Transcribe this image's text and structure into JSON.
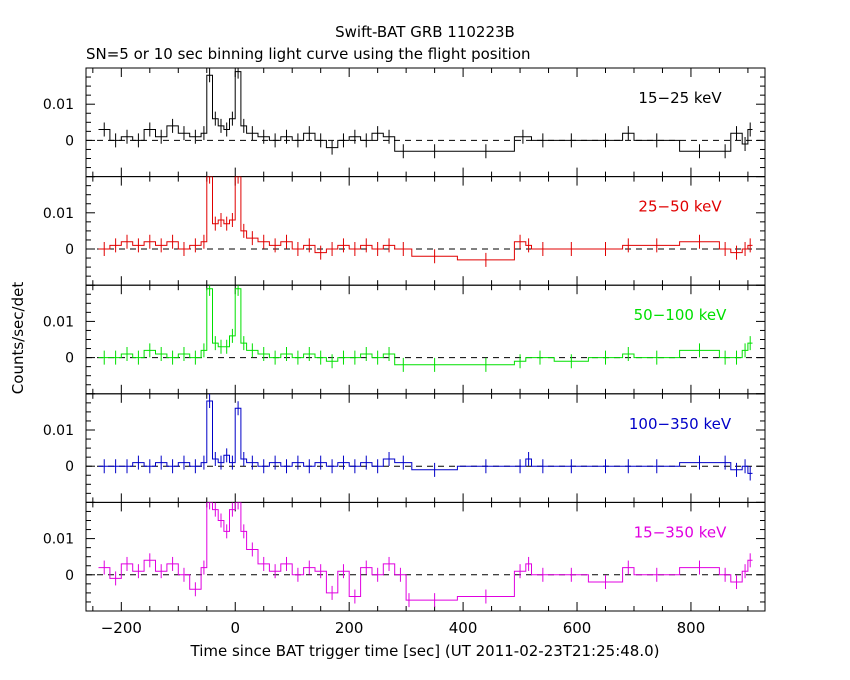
{
  "title": "Swift-BAT GRB 110223B",
  "subtitle": "SN=5 or 10 sec binning light curve using the flight position",
  "ylabel": "Counts/sec/det",
  "xlabel": "Time since BAT trigger time [sec] (UT 2011-02-23T21:25:48.0)",
  "chart_data": {
    "type": "line",
    "x_range": [
      -262,
      930
    ],
    "x_ticks": [
      -200,
      0,
      200,
      400,
      600,
      800
    ],
    "x_tick_labels": [
      "−200",
      "0",
      "200",
      "400",
      "600",
      "800"
    ],
    "y_range": [
      -0.01,
      0.02
    ],
    "y_tick_labels": [
      "0",
      "0.01"
    ],
    "grid": false,
    "panels": [
      {
        "label": "15−25 keV",
        "color": "#000000",
        "points": [
          [
            -240,
            0.003
          ],
          [
            -220,
            0.0
          ],
          [
            -200,
            0.001
          ],
          [
            -180,
            0.0
          ],
          [
            -160,
            0.003
          ],
          [
            -140,
            0.001
          ],
          [
            -120,
            0.004
          ],
          [
            -100,
            0.002
          ],
          [
            -80,
            0.001
          ],
          [
            -60,
            0.002
          ],
          [
            -50,
            0.018
          ],
          [
            -40,
            0.006
          ],
          [
            -30,
            0.004
          ],
          [
            -20,
            0.003
          ],
          [
            -10,
            0.006
          ],
          [
            0,
            0.019
          ],
          [
            10,
            0.004
          ],
          [
            20,
            0.002
          ],
          [
            40,
            0.001
          ],
          [
            60,
            0.0
          ],
          [
            80,
            0.001
          ],
          [
            100,
            0.0
          ],
          [
            120,
            0.002
          ],
          [
            140,
            0.0
          ],
          [
            160,
            -0.002
          ],
          [
            180,
            0.0
          ],
          [
            200,
            0.001
          ],
          [
            220,
            0.0
          ],
          [
            240,
            0.002
          ],
          [
            260,
            0.001
          ],
          [
            280,
            -0.003
          ],
          [
            310,
            -0.003
          ],
          [
            390,
            -0.003
          ],
          [
            490,
            0.001
          ],
          [
            520,
            0.0
          ],
          [
            560,
            0.0
          ],
          [
            620,
            0.0
          ],
          [
            680,
            0.002
          ],
          [
            700,
            0.0
          ],
          [
            780,
            -0.003
          ],
          [
            850,
            -0.003
          ],
          [
            870,
            0.002
          ],
          [
            890,
            -0.001
          ],
          [
            900,
            0.003
          ]
        ]
      },
      {
        "label": "25−50 keV",
        "color": "#e00000",
        "points": [
          [
            -240,
            0.0
          ],
          [
            -220,
            0.001
          ],
          [
            -200,
            0.002
          ],
          [
            -180,
            0.001
          ],
          [
            -160,
            0.002
          ],
          [
            -140,
            0.001
          ],
          [
            -120,
            0.002
          ],
          [
            -100,
            0.0
          ],
          [
            -80,
            0.001
          ],
          [
            -60,
            0.002
          ],
          [
            -50,
            0.02
          ],
          [
            -40,
            0.007
          ],
          [
            -30,
            0.008
          ],
          [
            -20,
            0.007
          ],
          [
            -10,
            0.008
          ],
          [
            0,
            0.02
          ],
          [
            10,
            0.005
          ],
          [
            20,
            0.003
          ],
          [
            40,
            0.002
          ],
          [
            60,
            0.001
          ],
          [
            80,
            0.002
          ],
          [
            100,
            0.0
          ],
          [
            120,
            0.001
          ],
          [
            140,
            -0.001
          ],
          [
            160,
            0.0
          ],
          [
            180,
            0.001
          ],
          [
            200,
            0.0
          ],
          [
            220,
            0.001
          ],
          [
            240,
            0.0
          ],
          [
            260,
            0.001
          ],
          [
            280,
            0.0
          ],
          [
            310,
            -0.002
          ],
          [
            390,
            -0.003
          ],
          [
            490,
            0.002
          ],
          [
            510,
            0.001
          ],
          [
            520,
            0.0
          ],
          [
            560,
            0.0
          ],
          [
            620,
            0.0
          ],
          [
            680,
            0.001
          ],
          [
            700,
            0.001
          ],
          [
            780,
            0.002
          ],
          [
            850,
            0.0
          ],
          [
            870,
            -0.001
          ],
          [
            890,
            0.0
          ],
          [
            900,
            0.001
          ]
        ]
      },
      {
        "label": "50−100 keV",
        "color": "#00e000",
        "points": [
          [
            -240,
            0.0
          ],
          [
            -220,
            0.0
          ],
          [
            -200,
            0.001
          ],
          [
            -180,
            0.0
          ],
          [
            -160,
            0.002
          ],
          [
            -140,
            0.001
          ],
          [
            -120,
            0.0
          ],
          [
            -100,
            0.001
          ],
          [
            -80,
            0.0
          ],
          [
            -60,
            0.002
          ],
          [
            -50,
            0.019
          ],
          [
            -40,
            0.004
          ],
          [
            -30,
            0.003
          ],
          [
            -20,
            0.003
          ],
          [
            -10,
            0.006
          ],
          [
            0,
            0.019
          ],
          [
            10,
            0.004
          ],
          [
            20,
            0.002
          ],
          [
            40,
            0.001
          ],
          [
            60,
            0.0
          ],
          [
            80,
            0.001
          ],
          [
            100,
            0.0
          ],
          [
            120,
            0.001
          ],
          [
            140,
            0.0
          ],
          [
            160,
            -0.001
          ],
          [
            180,
            0.0
          ],
          [
            200,
            0.0
          ],
          [
            220,
            0.001
          ],
          [
            240,
            0.0
          ],
          [
            260,
            0.001
          ],
          [
            280,
            -0.002
          ],
          [
            310,
            -0.002
          ],
          [
            390,
            -0.002
          ],
          [
            490,
            -0.001
          ],
          [
            510,
            0.0
          ],
          [
            560,
            -0.001
          ],
          [
            620,
            0.0
          ],
          [
            680,
            0.001
          ],
          [
            700,
            0.0
          ],
          [
            780,
            0.002
          ],
          [
            850,
            0.0
          ],
          [
            870,
            0.0
          ],
          [
            890,
            0.002
          ],
          [
            900,
            0.004
          ]
        ]
      },
      {
        "label": "100−350 keV",
        "color": "#0000c8",
        "points": [
          [
            -240,
            0.0
          ],
          [
            -220,
            0.0
          ],
          [
            -200,
            0.0
          ],
          [
            -180,
            0.001
          ],
          [
            -160,
            0.0
          ],
          [
            -140,
            0.001
          ],
          [
            -120,
            0.0
          ],
          [
            -100,
            0.001
          ],
          [
            -80,
            0.0
          ],
          [
            -60,
            0.001
          ],
          [
            -50,
            0.018
          ],
          [
            -40,
            0.002
          ],
          [
            -30,
            0.001
          ],
          [
            -20,
            0.003
          ],
          [
            -10,
            0.001
          ],
          [
            0,
            0.016
          ],
          [
            10,
            0.002
          ],
          [
            20,
            0.001
          ],
          [
            40,
            0.0
          ],
          [
            60,
            0.001
          ],
          [
            80,
            0.0
          ],
          [
            100,
            0.001
          ],
          [
            120,
            0.0
          ],
          [
            140,
            0.001
          ],
          [
            160,
            0.0
          ],
          [
            180,
            0.001
          ],
          [
            200,
            0.0
          ],
          [
            220,
            0.001
          ],
          [
            240,
            0.0
          ],
          [
            260,
            0.002
          ],
          [
            280,
            0.001
          ],
          [
            310,
            -0.001
          ],
          [
            390,
            0.0
          ],
          [
            490,
            0.0
          ],
          [
            510,
            0.002
          ],
          [
            520,
            0.0
          ],
          [
            560,
            0.0
          ],
          [
            620,
            0.0
          ],
          [
            680,
            0.0
          ],
          [
            700,
            0.0
          ],
          [
            780,
            0.001
          ],
          [
            850,
            0.001
          ],
          [
            870,
            -0.001
          ],
          [
            890,
            0.0
          ],
          [
            900,
            -0.002
          ]
        ]
      },
      {
        "label": "15−350 keV",
        "color": "#e000e0",
        "points": [
          [
            -240,
            0.002
          ],
          [
            -220,
            -0.001
          ],
          [
            -200,
            0.003
          ],
          [
            -180,
            0.001
          ],
          [
            -160,
            0.004
          ],
          [
            -140,
            0.001
          ],
          [
            -120,
            0.003
          ],
          [
            -100,
            0.0
          ],
          [
            -80,
            -0.004
          ],
          [
            -60,
            0.002
          ],
          [
            -50,
            0.02
          ],
          [
            -40,
            0.018
          ],
          [
            -30,
            0.015
          ],
          [
            -20,
            0.012
          ],
          [
            -10,
            0.018
          ],
          [
            0,
            0.02
          ],
          [
            10,
            0.012
          ],
          [
            20,
            0.007
          ],
          [
            40,
            0.003
          ],
          [
            60,
            0.001
          ],
          [
            80,
            0.003
          ],
          [
            100,
            0.0
          ],
          [
            120,
            0.002
          ],
          [
            140,
            0.001
          ],
          [
            160,
            -0.005
          ],
          [
            180,
            0.001
          ],
          [
            200,
            -0.006
          ],
          [
            220,
            0.002
          ],
          [
            240,
            0.0
          ],
          [
            260,
            0.003
          ],
          [
            280,
            0.0
          ],
          [
            300,
            -0.007
          ],
          [
            310,
            -0.007
          ],
          [
            390,
            -0.006
          ],
          [
            490,
            0.001
          ],
          [
            510,
            0.003
          ],
          [
            520,
            0.0
          ],
          [
            560,
            0.0
          ],
          [
            620,
            -0.002
          ],
          [
            680,
            0.002
          ],
          [
            700,
            0.0
          ],
          [
            780,
            0.002
          ],
          [
            850,
            0.0
          ],
          [
            870,
            -0.002
          ],
          [
            890,
            0.001
          ],
          [
            900,
            0.004
          ]
        ]
      }
    ]
  }
}
